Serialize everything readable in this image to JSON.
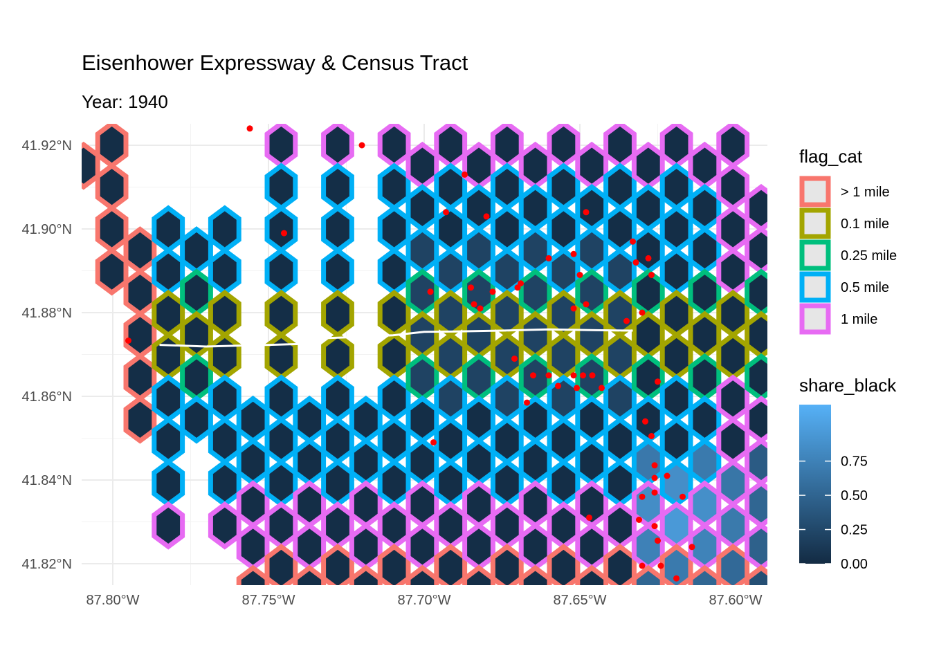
{
  "chart_data": {
    "type": "map",
    "title": "Eisenhower Expressway & Census Tract",
    "subtitle": "Year: 1940",
    "x_ticks": [
      "87.80°W",
      "87.75°W",
      "87.70°W",
      "87.65°W",
      "87.60°W"
    ],
    "x_tick_values": [
      -87.8,
      -87.75,
      -87.7,
      -87.65,
      -87.6
    ],
    "y_ticks": [
      "41.92°N",
      "41.90°N",
      "41.88°N",
      "41.86°N",
      "41.84°N",
      "41.82°N"
    ],
    "y_tick_values": [
      41.92,
      41.9,
      41.88,
      41.86,
      41.84,
      41.82
    ],
    "xlim": [
      -87.81,
      -87.591
    ],
    "ylim": [
      41.815,
      41.925
    ],
    "grid": true,
    "legend_flag": {
      "title": "flag_cat",
      "placement": "right",
      "items": [
        {
          "label": "> 1 mile",
          "color": "#F8766D"
        },
        {
          "label": "0.1 mile",
          "color": "#A3A500"
        },
        {
          "label": "0.25 mile",
          "color": "#00BF7D"
        },
        {
          "label": "0.5 mile",
          "color": "#00B0F6"
        },
        {
          "label": "1 mile",
          "color": "#E76BF3"
        }
      ]
    },
    "legend_share": {
      "title": "share_black",
      "placement": "right",
      "ticks": [
        "0.75",
        "0.50",
        "0.25",
        "0.00"
      ],
      "tick_values": [
        0.75,
        0.5,
        0.25,
        0.0
      ],
      "range": [
        0,
        1
      ],
      "low_color": "#132B43",
      "high_color": "#56B1F7"
    },
    "expressway": {
      "color": "#ffffff",
      "lon": [
        -87.785,
        -87.77,
        -87.76,
        -87.75,
        -87.74,
        -87.735,
        -87.725,
        -87.71,
        -87.7,
        -87.69,
        -87.675,
        -87.66,
        -87.645,
        -87.633
      ],
      "lat": [
        41.8723,
        41.8719,
        41.8721,
        41.8723,
        41.8725,
        41.8738,
        41.8741,
        41.8746,
        41.8754,
        41.8755,
        41.8757,
        41.876,
        41.8758,
        41.8757
      ]
    },
    "points": {
      "color": "#FF0000",
      "lon": [
        -87.756,
        -87.72,
        -87.795,
        -87.745,
        -87.687,
        -87.693,
        -87.68,
        -87.648,
        -87.633,
        -87.632,
        -87.628,
        -87.627,
        -87.698,
        -87.685,
        -87.678,
        -87.67,
        -87.669,
        -87.684,
        -87.682,
        -87.66,
        -87.652,
        -87.65,
        -87.648,
        -87.652,
        -87.635,
        -87.63,
        -87.671,
        -87.665,
        -87.66,
        -87.657,
        -87.652,
        -87.651,
        -87.649,
        -87.646,
        -87.643,
        -87.625,
        -87.667,
        -87.629,
        -87.697,
        -87.627,
        -87.626,
        -87.626,
        -87.622,
        -87.63,
        -87.626,
        -87.617,
        -87.647,
        -87.631,
        -87.626,
        -87.625,
        -87.63,
        -87.624,
        -87.619,
        -87.614
      ],
      "lat": [
        41.924,
        41.92,
        41.8733,
        41.899,
        41.913,
        41.904,
        41.903,
        41.904,
        41.897,
        41.892,
        41.893,
        41.889,
        41.885,
        41.886,
        41.885,
        41.886,
        41.887,
        41.882,
        41.881,
        41.893,
        41.894,
        41.889,
        41.882,
        41.881,
        41.878,
        41.88,
        41.869,
        41.865,
        41.865,
        41.8625,
        41.865,
        41.862,
        41.865,
        41.865,
        41.862,
        41.8635,
        41.8585,
        41.854,
        41.849,
        41.8505,
        41.8435,
        41.8405,
        41.841,
        41.836,
        41.837,
        41.836,
        41.831,
        41.8305,
        41.829,
        41.8255,
        41.8195,
        41.8195,
        41.8165,
        41.824
      ]
    }
  }
}
